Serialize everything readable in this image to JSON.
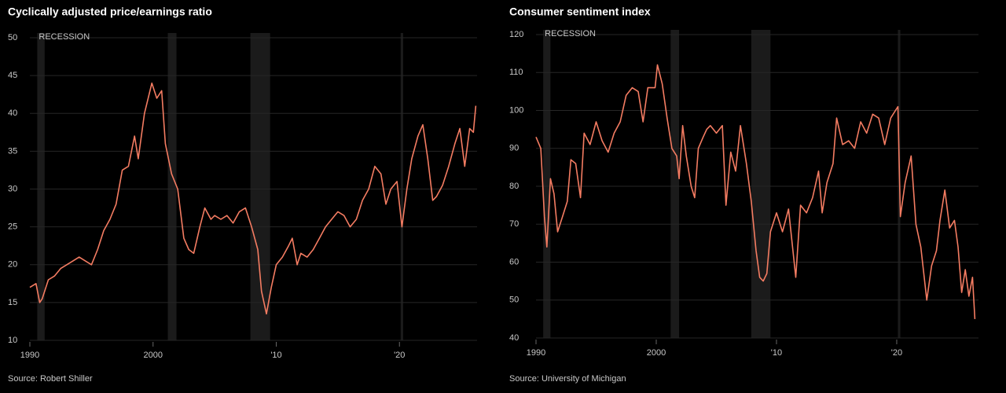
{
  "chart_data": [
    {
      "type": "line",
      "title": "Cyclically adjusted price/earnings ratio",
      "source": "Source: Robert Shiller",
      "recession_label": "RECESSION",
      "color": "#f47c62",
      "grid": true,
      "recession_color": "#1b1b1b",
      "recessions": [
        [
          1990.6,
          1991.2
        ],
        [
          2001.2,
          2001.9
        ],
        [
          2007.9,
          2009.5
        ],
        [
          2020.1,
          2020.3
        ]
      ],
      "xlim": [
        1990,
        2026.3
      ],
      "xticks": [
        1990,
        2000,
        {
          "value": 2010,
          "label": "'10"
        },
        {
          "value": 2020,
          "label": "'20"
        }
      ],
      "ylim": [
        10,
        50
      ],
      "yticks": [
        10,
        15,
        20,
        25,
        30,
        35,
        40,
        45,
        50
      ],
      "x": [
        1990.0,
        1990.5,
        1990.8,
        1991.0,
        1991.5,
        1992.0,
        1992.5,
        1993.0,
        1993.5,
        1994.0,
        1994.5,
        1995.0,
        1995.5,
        1996.0,
        1996.5,
        1997.0,
        1997.5,
        1998.0,
        1998.5,
        1998.8,
        1999.3,
        1999.9,
        2000.3,
        2000.7,
        2001.0,
        2001.5,
        2002.0,
        2002.5,
        2002.9,
        2003.3,
        2003.8,
        2004.2,
        2004.7,
        2005.0,
        2005.5,
        2006.0,
        2006.5,
        2007.0,
        2007.5,
        2008.0,
        2008.5,
        2008.8,
        2009.2,
        2009.6,
        2010.0,
        2010.5,
        2011.0,
        2011.3,
        2011.7,
        2012.0,
        2012.5,
        2013.0,
        2013.5,
        2014.0,
        2014.5,
        2015.0,
        2015.5,
        2016.0,
        2016.5,
        2017.0,
        2017.5,
        2018.0,
        2018.5,
        2018.9,
        2019.3,
        2019.8,
        2020.2,
        2020.6,
        2021.0,
        2021.5,
        2021.9,
        2022.3,
        2022.7,
        2023.0,
        2023.5,
        2024.0,
        2024.5,
        2024.9,
        2025.3,
        2025.7,
        2026.0,
        2026.2
      ],
      "values": [
        17,
        17.5,
        15,
        15.5,
        18,
        18.5,
        19.5,
        20,
        20.5,
        21,
        20.5,
        20,
        22,
        24.5,
        26,
        28,
        32.5,
        33,
        37,
        34,
        40,
        44,
        42,
        43,
        36,
        32,
        30,
        23.5,
        22,
        21.5,
        25,
        27.5,
        26,
        26.5,
        26,
        26.5,
        25.5,
        27,
        27.5,
        25,
        22,
        16.5,
        13.5,
        17,
        20,
        21,
        22.5,
        23.5,
        20,
        21.5,
        21,
        22,
        23.5,
        25,
        26,
        27,
        26.5,
        25,
        26,
        28.5,
        30,
        33,
        32,
        28,
        30,
        31,
        25,
        30,
        34,
        37,
        38.5,
        34,
        28.5,
        29,
        30.5,
        33,
        36,
        38,
        33,
        38,
        37.5,
        41
      ]
    },
    {
      "type": "line",
      "title": "Consumer sentiment index",
      "source": "Source: University of Michigan",
      "recession_label": "RECESSION",
      "color": "#f47c62",
      "grid": true,
      "recession_color": "#1b1b1b",
      "recessions": [
        [
          1990.6,
          1991.2
        ],
        [
          2001.2,
          2001.9
        ],
        [
          2007.9,
          2009.5
        ],
        [
          2020.1,
          2020.3
        ]
      ],
      "xlim": [
        1990,
        2026.8
      ],
      "xticks": [
        1990,
        2000,
        {
          "value": 2010,
          "label": "'10"
        },
        {
          "value": 2020,
          "label": "'20"
        }
      ],
      "ylim": [
        40,
        120
      ],
      "yticks": [
        40,
        50,
        60,
        70,
        80,
        90,
        100,
        110,
        120
      ],
      "x": [
        1990.0,
        1990.4,
        1990.7,
        1990.9,
        1991.2,
        1991.5,
        1991.8,
        1992.2,
        1992.6,
        1992.9,
        1993.3,
        1993.7,
        1994.0,
        1994.5,
        1995.0,
        1995.5,
        1996.0,
        1996.5,
        1997.0,
        1997.5,
        1998.0,
        1998.5,
        1998.9,
        1999.3,
        1999.9,
        2000.1,
        2000.5,
        2000.9,
        2001.3,
        2001.7,
        2001.9,
        2002.2,
        2002.5,
        2002.9,
        2003.2,
        2003.5,
        2003.9,
        2004.2,
        2004.5,
        2005.0,
        2005.5,
        2005.8,
        2006.2,
        2006.6,
        2007.0,
        2007.5,
        2007.9,
        2008.3,
        2008.6,
        2008.9,
        2009.2,
        2009.5,
        2010.0,
        2010.5,
        2011.0,
        2011.6,
        2012.0,
        2012.5,
        2013.0,
        2013.5,
        2013.8,
        2014.2,
        2014.7,
        2015.0,
        2015.5,
        2016.0,
        2016.5,
        2017.0,
        2017.5,
        2018.0,
        2018.5,
        2019.0,
        2019.5,
        2019.9,
        2020.1,
        2020.3,
        2020.7,
        2021.2,
        2021.6,
        2022.0,
        2022.5,
        2022.9,
        2023.3,
        2023.6,
        2024.0,
        2024.4,
        2024.8,
        2025.1,
        2025.4,
        2025.7,
        2026.0,
        2026.3,
        2026.5
      ],
      "values": [
        93,
        90,
        72,
        64,
        82,
        78,
        68,
        72,
        76,
        87,
        86,
        77,
        94,
        91,
        97,
        92,
        89,
        94,
        97,
        104,
        106,
        105,
        97,
        106,
        106,
        112,
        107,
        98,
        90,
        88,
        82,
        96,
        88,
        80,
        77,
        90,
        93,
        95,
        96,
        94,
        96,
        75,
        89,
        84,
        96,
        86,
        76,
        63,
        56,
        55,
        57,
        68,
        73,
        68,
        74,
        56,
        75,
        73,
        77,
        84,
        73,
        81,
        86,
        98,
        91,
        92,
        90,
        97,
        94,
        99,
        98,
        91,
        98,
        100,
        101,
        72,
        81,
        88,
        70,
        64,
        50,
        59,
        63,
        71,
        79,
        69,
        71,
        64,
        52,
        58,
        51,
        56,
        45
      ]
    }
  ]
}
